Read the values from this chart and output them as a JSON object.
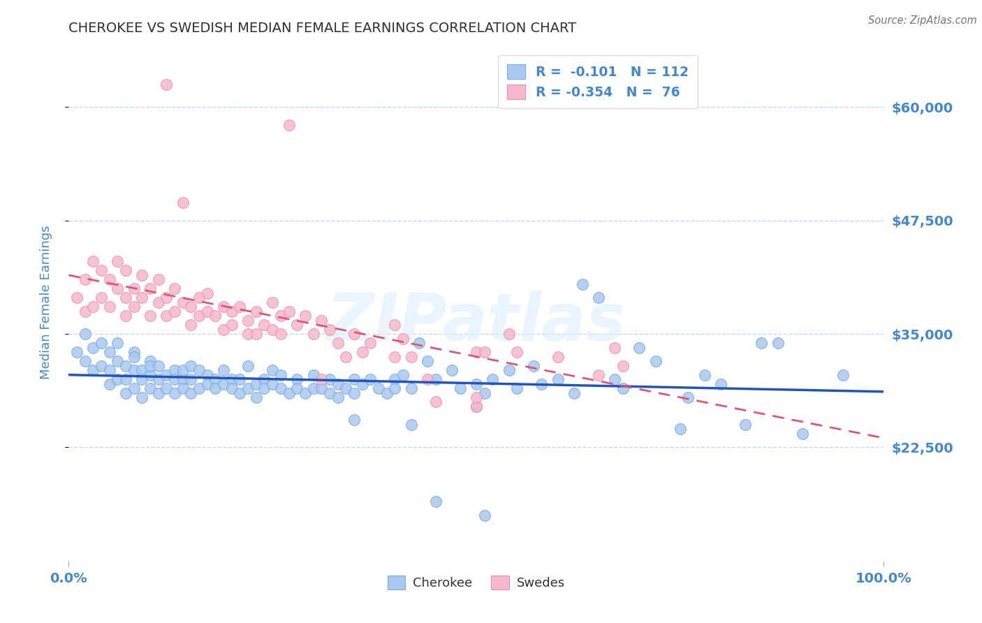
{
  "title": "CHEROKEE VS SWEDISH MEDIAN FEMALE EARNINGS CORRELATION CHART",
  "source": "Source: ZipAtlas.com",
  "ylabel": "Median Female Earnings",
  "xlim": [
    0.0,
    1.0
  ],
  "ylim": [
    10000,
    67000
  ],
  "ytick_vals": [
    22500,
    35000,
    47500,
    60000
  ],
  "ytick_labels": [
    "$22,500",
    "$35,000",
    "$47,500",
    "$60,000"
  ],
  "xtick_vals": [
    0.0,
    1.0
  ],
  "xtick_labels": [
    "0.0%",
    "100.0%"
  ],
  "cherokee_color": "#a8c8f0",
  "cherokee_edge": "#7aaad8",
  "swedes_color": "#f8b8cc",
  "swedes_edge": "#e890aa",
  "trendline_cherokee_color": "#2255bb",
  "trendline_swedes_color": "#dd5577",
  "watermark": "ZIPatlas",
  "background_color": "#ffffff",
  "grid_color": "#c8d8e8",
  "title_color": "#303030",
  "tick_color": "#4488cc",
  "legend_text_color": "#333333",
  "legend_value_color": "#4488cc",
  "cherokee_points": [
    [
      0.01,
      33000
    ],
    [
      0.02,
      35000
    ],
    [
      0.02,
      32000
    ],
    [
      0.03,
      31000
    ],
    [
      0.03,
      33500
    ],
    [
      0.04,
      34000
    ],
    [
      0.04,
      31500
    ],
    [
      0.05,
      33000
    ],
    [
      0.05,
      31000
    ],
    [
      0.05,
      29500
    ],
    [
      0.06,
      32000
    ],
    [
      0.06,
      30000
    ],
    [
      0.06,
      34000
    ],
    [
      0.07,
      31500
    ],
    [
      0.07,
      30000
    ],
    [
      0.07,
      28500
    ],
    [
      0.08,
      33000
    ],
    [
      0.08,
      31000
    ],
    [
      0.08,
      29000
    ],
    [
      0.08,
      32500
    ],
    [
      0.09,
      31000
    ],
    [
      0.09,
      30000
    ],
    [
      0.09,
      28000
    ],
    [
      0.1,
      32000
    ],
    [
      0.1,
      30500
    ],
    [
      0.1,
      29000
    ],
    [
      0.1,
      31500
    ],
    [
      0.11,
      30000
    ],
    [
      0.11,
      31500
    ],
    [
      0.11,
      28500
    ],
    [
      0.12,
      30500
    ],
    [
      0.12,
      29000
    ],
    [
      0.13,
      31000
    ],
    [
      0.13,
      30000
    ],
    [
      0.13,
      28500
    ],
    [
      0.14,
      30000
    ],
    [
      0.14,
      31000
    ],
    [
      0.14,
      29000
    ],
    [
      0.15,
      31500
    ],
    [
      0.15,
      30000
    ],
    [
      0.15,
      28500
    ],
    [
      0.16,
      31000
    ],
    [
      0.16,
      29000
    ],
    [
      0.17,
      30500
    ],
    [
      0.17,
      29500
    ],
    [
      0.18,
      30000
    ],
    [
      0.18,
      29000
    ],
    [
      0.19,
      29500
    ],
    [
      0.19,
      31000
    ],
    [
      0.2,
      30000
    ],
    [
      0.2,
      29000
    ],
    [
      0.21,
      28500
    ],
    [
      0.21,
      30000
    ],
    [
      0.22,
      29000
    ],
    [
      0.22,
      31500
    ],
    [
      0.23,
      29500
    ],
    [
      0.23,
      28000
    ],
    [
      0.24,
      30000
    ],
    [
      0.24,
      29000
    ],
    [
      0.25,
      31000
    ],
    [
      0.25,
      29500
    ],
    [
      0.26,
      30500
    ],
    [
      0.26,
      29000
    ],
    [
      0.27,
      28500
    ],
    [
      0.28,
      30000
    ],
    [
      0.28,
      29000
    ],
    [
      0.29,
      28500
    ],
    [
      0.3,
      29000
    ],
    [
      0.3,
      30500
    ],
    [
      0.31,
      29000
    ],
    [
      0.32,
      28500
    ],
    [
      0.32,
      30000
    ],
    [
      0.33,
      29500
    ],
    [
      0.33,
      28000
    ],
    [
      0.34,
      29000
    ],
    [
      0.35,
      30000
    ],
    [
      0.35,
      28500
    ],
    [
      0.36,
      29500
    ],
    [
      0.37,
      30000
    ],
    [
      0.38,
      29000
    ],
    [
      0.39,
      28500
    ],
    [
      0.4,
      30000
    ],
    [
      0.4,
      29000
    ],
    [
      0.41,
      30500
    ],
    [
      0.42,
      29000
    ],
    [
      0.43,
      34000
    ],
    [
      0.44,
      32000
    ],
    [
      0.45,
      30000
    ],
    [
      0.47,
      31000
    ],
    [
      0.48,
      29000
    ],
    [
      0.5,
      29500
    ],
    [
      0.51,
      28500
    ],
    [
      0.52,
      30000
    ],
    [
      0.54,
      31000
    ],
    [
      0.55,
      29000
    ],
    [
      0.57,
      31500
    ],
    [
      0.58,
      29500
    ],
    [
      0.6,
      30000
    ],
    [
      0.62,
      28500
    ],
    [
      0.63,
      40500
    ],
    [
      0.65,
      39000
    ],
    [
      0.67,
      30000
    ],
    [
      0.68,
      29000
    ],
    [
      0.7,
      33500
    ],
    [
      0.72,
      32000
    ],
    [
      0.75,
      24500
    ],
    [
      0.76,
      28000
    ],
    [
      0.78,
      30500
    ],
    [
      0.8,
      29500
    ],
    [
      0.83,
      25000
    ],
    [
      0.85,
      34000
    ],
    [
      0.87,
      34000
    ],
    [
      0.9,
      24000
    ],
    [
      0.95,
      30500
    ],
    [
      0.35,
      25500
    ],
    [
      0.42,
      25000
    ],
    [
      0.5,
      27000
    ],
    [
      0.45,
      16500
    ],
    [
      0.51,
      15000
    ]
  ],
  "swedes_points": [
    [
      0.01,
      39000
    ],
    [
      0.02,
      41000
    ],
    [
      0.02,
      37500
    ],
    [
      0.03,
      43000
    ],
    [
      0.03,
      38000
    ],
    [
      0.04,
      42000
    ],
    [
      0.04,
      39000
    ],
    [
      0.05,
      41000
    ],
    [
      0.05,
      38000
    ],
    [
      0.06,
      43000
    ],
    [
      0.06,
      40000
    ],
    [
      0.07,
      42000
    ],
    [
      0.07,
      39000
    ],
    [
      0.07,
      37000
    ],
    [
      0.08,
      40000
    ],
    [
      0.08,
      38000
    ],
    [
      0.09,
      41500
    ],
    [
      0.09,
      39000
    ],
    [
      0.1,
      40000
    ],
    [
      0.1,
      37000
    ],
    [
      0.11,
      41000
    ],
    [
      0.11,
      38500
    ],
    [
      0.12,
      39000
    ],
    [
      0.12,
      37000
    ],
    [
      0.13,
      40000
    ],
    [
      0.13,
      37500
    ],
    [
      0.14,
      49500
    ],
    [
      0.14,
      38500
    ],
    [
      0.15,
      38000
    ],
    [
      0.15,
      36000
    ],
    [
      0.16,
      39000
    ],
    [
      0.16,
      37000
    ],
    [
      0.17,
      39500
    ],
    [
      0.17,
      37500
    ],
    [
      0.18,
      37000
    ],
    [
      0.19,
      38000
    ],
    [
      0.19,
      35500
    ],
    [
      0.2,
      37500
    ],
    [
      0.2,
      36000
    ],
    [
      0.21,
      38000
    ],
    [
      0.22,
      36500
    ],
    [
      0.22,
      35000
    ],
    [
      0.23,
      37500
    ],
    [
      0.23,
      35000
    ],
    [
      0.24,
      36000
    ],
    [
      0.25,
      38500
    ],
    [
      0.25,
      35500
    ],
    [
      0.26,
      37000
    ],
    [
      0.26,
      35000
    ],
    [
      0.27,
      37500
    ],
    [
      0.28,
      36000
    ],
    [
      0.29,
      37000
    ],
    [
      0.3,
      35000
    ],
    [
      0.31,
      36500
    ],
    [
      0.31,
      30000
    ],
    [
      0.32,
      35500
    ],
    [
      0.33,
      34000
    ],
    [
      0.34,
      32500
    ],
    [
      0.35,
      35000
    ],
    [
      0.36,
      33000
    ],
    [
      0.37,
      34000
    ],
    [
      0.4,
      36000
    ],
    [
      0.4,
      32500
    ],
    [
      0.41,
      34500
    ],
    [
      0.42,
      32500
    ],
    [
      0.44,
      30000
    ],
    [
      0.45,
      27500
    ],
    [
      0.5,
      33000
    ],
    [
      0.51,
      33000
    ],
    [
      0.54,
      35000
    ],
    [
      0.55,
      33000
    ],
    [
      0.6,
      32500
    ],
    [
      0.65,
      30500
    ],
    [
      0.67,
      33500
    ],
    [
      0.68,
      31500
    ],
    [
      0.12,
      62500
    ],
    [
      0.27,
      58000
    ],
    [
      0.5,
      27000
    ],
    [
      0.5,
      28000
    ]
  ]
}
